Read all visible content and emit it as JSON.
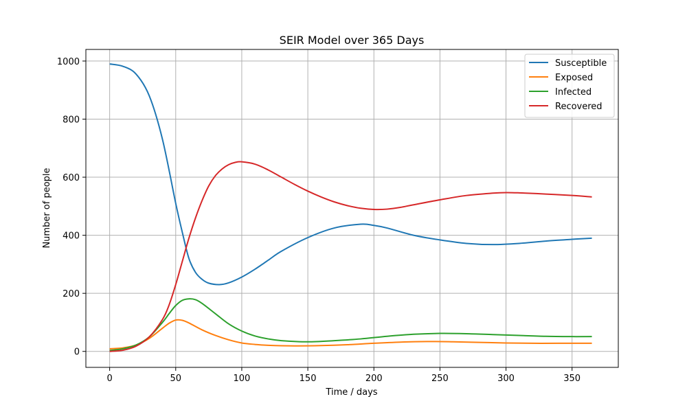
{
  "chart_data": {
    "type": "line",
    "title": "SEIR Model over 365 Days",
    "xlabel": "Time / days",
    "ylabel": "Number of people",
    "xlim": [
      -18,
      385
    ],
    "ylim": [
      -55,
      1040
    ],
    "xticks": [
      0,
      50,
      100,
      150,
      200,
      250,
      300,
      350
    ],
    "yticks": [
      0,
      200,
      400,
      600,
      800,
      1000
    ],
    "grid": true,
    "legend_position": "top-right",
    "series": [
      {
        "name": "Susceptible",
        "color": "#1f77b4",
        "points": [
          [
            0,
            990
          ],
          [
            10,
            982
          ],
          [
            20,
            955
          ],
          [
            30,
            880
          ],
          [
            40,
            730
          ],
          [
            50,
            510
          ],
          [
            55,
            410
          ],
          [
            60,
            320
          ],
          [
            65,
            272
          ],
          [
            70,
            248
          ],
          [
            75,
            235
          ],
          [
            83,
            230
          ],
          [
            90,
            236
          ],
          [
            100,
            256
          ],
          [
            110,
            283
          ],
          [
            120,
            314
          ],
          [
            130,
            345
          ],
          [
            150,
            392
          ],
          [
            170,
            425
          ],
          [
            190,
            438
          ],
          [
            200,
            434
          ],
          [
            210,
            425
          ],
          [
            230,
            400
          ],
          [
            250,
            384
          ],
          [
            270,
            372
          ],
          [
            290,
            368
          ],
          [
            310,
            372
          ],
          [
            330,
            380
          ],
          [
            350,
            386
          ],
          [
            365,
            390
          ]
        ]
      },
      {
        "name": "Exposed",
        "color": "#ff7f0e",
        "points": [
          [
            0,
            9
          ],
          [
            10,
            12
          ],
          [
            20,
            22
          ],
          [
            30,
            45
          ],
          [
            40,
            80
          ],
          [
            45,
            97
          ],
          [
            50,
            108
          ],
          [
            55,
            107
          ],
          [
            60,
            98
          ],
          [
            70,
            74
          ],
          [
            80,
            55
          ],
          [
            90,
            40
          ],
          [
            100,
            29
          ],
          [
            110,
            24
          ],
          [
            120,
            21
          ],
          [
            140,
            19
          ],
          [
            160,
            20
          ],
          [
            180,
            23
          ],
          [
            200,
            28
          ],
          [
            220,
            32
          ],
          [
            240,
            34
          ],
          [
            260,
            33
          ],
          [
            280,
            31
          ],
          [
            300,
            29
          ],
          [
            320,
            28
          ],
          [
            340,
            28
          ],
          [
            365,
            28
          ]
        ]
      },
      {
        "name": "Infected",
        "color": "#2ca02c",
        "points": [
          [
            0,
            3
          ],
          [
            10,
            9
          ],
          [
            20,
            22
          ],
          [
            30,
            50
          ],
          [
            40,
            100
          ],
          [
            45,
            130
          ],
          [
            50,
            158
          ],
          [
            55,
            176
          ],
          [
            60,
            181
          ],
          [
            65,
            178
          ],
          [
            70,
            165
          ],
          [
            80,
            130
          ],
          [
            90,
            95
          ],
          [
            100,
            70
          ],
          [
            110,
            53
          ],
          [
            120,
            43
          ],
          [
            130,
            37
          ],
          [
            150,
            33
          ],
          [
            170,
            37
          ],
          [
            190,
            43
          ],
          [
            210,
            52
          ],
          [
            230,
            59
          ],
          [
            250,
            62
          ],
          [
            270,
            61
          ],
          [
            290,
            58
          ],
          [
            310,
            55
          ],
          [
            330,
            52
          ],
          [
            350,
            51
          ],
          [
            365,
            51
          ]
        ]
      },
      {
        "name": "Recovered",
        "color": "#d62728",
        "points": [
          [
            0,
            0
          ],
          [
            10,
            4
          ],
          [
            20,
            18
          ],
          [
            30,
            50
          ],
          [
            40,
            110
          ],
          [
            45,
            160
          ],
          [
            50,
            230
          ],
          [
            55,
            310
          ],
          [
            60,
            390
          ],
          [
            65,
            460
          ],
          [
            70,
            520
          ],
          [
            75,
            570
          ],
          [
            80,
            605
          ],
          [
            85,
            628
          ],
          [
            90,
            643
          ],
          [
            95,
            651
          ],
          [
            100,
            653
          ],
          [
            110,
            645
          ],
          [
            120,
            625
          ],
          [
            130,
            600
          ],
          [
            140,
            575
          ],
          [
            150,
            552
          ],
          [
            160,
            532
          ],
          [
            170,
            515
          ],
          [
            180,
            502
          ],
          [
            190,
            493
          ],
          [
            200,
            489
          ],
          [
            210,
            490
          ],
          [
            220,
            496
          ],
          [
            230,
            505
          ],
          [
            250,
            522
          ],
          [
            270,
            537
          ],
          [
            290,
            545
          ],
          [
            300,
            547
          ],
          [
            310,
            546
          ],
          [
            330,
            542
          ],
          [
            350,
            537
          ],
          [
            365,
            532
          ]
        ]
      }
    ]
  }
}
